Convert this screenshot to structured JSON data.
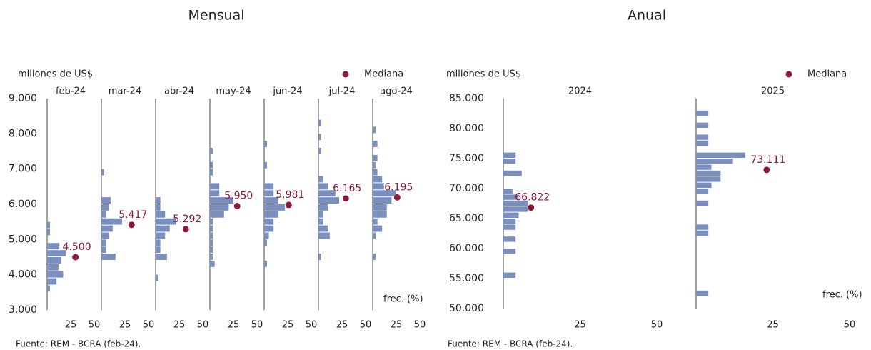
{
  "chart_data": [
    {
      "type": "hbar-histogram",
      "title": "Mensual",
      "y_label": "millones de US$",
      "x_label": "frec. (%)",
      "source": "Fuente: REM - BCRA (feb-24).",
      "median_name": "Mediana",
      "median_color": "#8b1a3a",
      "color": "#7b8fbf",
      "ylim": [
        3000,
        9000
      ],
      "yticks": [
        {
          "value": 3000,
          "label": "3.000"
        },
        {
          "value": 4000,
          "label": "4.000"
        },
        {
          "value": 5000,
          "label": "5.000"
        },
        {
          "value": 6000,
          "label": "6.000"
        },
        {
          "value": 7000,
          "label": "7.000"
        },
        {
          "value": 8000,
          "label": "8.000"
        },
        {
          "value": 9000,
          "label": "9.000"
        }
      ],
      "xlim": [
        0,
        50
      ],
      "xticks": [
        25,
        50
      ],
      "panels": [
        {
          "name": "feb-24",
          "bins": [
            3500,
            3700,
            3900,
            4100,
            4300,
            4500,
            4700,
            4900,
            5100,
            5300,
            5500
          ],
          "counts": [
            3,
            10,
            17,
            12,
            15,
            20,
            13,
            0,
            3,
            3
          ],
          "median_x": 30,
          "median": 4500,
          "median_label": "4.500"
        },
        {
          "name": "mar-24",
          "bins": [
            4400,
            4600,
            4800,
            5000,
            5200,
            5400,
            5600,
            5800,
            6000,
            6200,
            6400,
            6600,
            6800,
            7000
          ],
          "counts": [
            15,
            5,
            5,
            8,
            12,
            22,
            5,
            8,
            10,
            0,
            0,
            0,
            3
          ],
          "median_x": 32,
          "median": 5417,
          "median_label": "5.417"
        },
        {
          "name": "abr-24",
          "bins": [
            3800,
            4000,
            4200,
            4400,
            4600,
            4800,
            5000,
            5200,
            5400,
            5600,
            5800,
            6000,
            6200
          ],
          "counts": [
            3,
            0,
            0,
            12,
            5,
            5,
            10,
            15,
            22,
            10,
            5,
            5
          ],
          "median_x": 32,
          "median": 5292,
          "median_label": "5.292"
        },
        {
          "name": "may-24",
          "bins": [
            4200,
            4400,
            4600,
            4800,
            5000,
            5200,
            5400,
            5600,
            5800,
            6000,
            6200,
            6400,
            6600,
            6800,
            7000,
            7200,
            7400,
            7600
          ],
          "counts": [
            5,
            3,
            3,
            3,
            3,
            3,
            3,
            15,
            20,
            25,
            10,
            10,
            0,
            3,
            3,
            0,
            3
          ],
          "median_x": 29,
          "median": 5950,
          "median_label": "5.950"
        },
        {
          "name": "jun-24",
          "bins": [
            4200,
            4400,
            4600,
            4800,
            5000,
            5200,
            5400,
            5600,
            5800,
            6000,
            6200,
            6400,
            6600,
            6800,
            7000,
            7200,
            7400,
            7600,
            7800
          ],
          "counts": [
            3,
            0,
            0,
            3,
            5,
            10,
            10,
            15,
            22,
            15,
            10,
            10,
            0,
            0,
            3,
            0,
            0,
            3
          ],
          "median_x": 26,
          "median": 5981,
          "median_label": "5.981"
        },
        {
          "name": "jul-24",
          "bins": [
            4400,
            4600,
            4800,
            5000,
            5200,
            5400,
            5600,
            5800,
            6000,
            6200,
            6400,
            6600,
            6800,
            7000,
            7200,
            7400,
            7600,
            7800,
            8000,
            8200,
            8400
          ],
          "counts": [
            3,
            0,
            0,
            12,
            10,
            5,
            5,
            10,
            22,
            18,
            10,
            5,
            0,
            0,
            0,
            3,
            0,
            3,
            0,
            3
          ],
          "median_x": 29,
          "median": 6165,
          "median_label": "6.165"
        },
        {
          "name": "ago-24",
          "bins": [
            4400,
            4600,
            4800,
            5000,
            5200,
            5400,
            5600,
            5800,
            6000,
            6200,
            6400,
            6600,
            6800,
            7000,
            7200,
            7400,
            7600,
            7800,
            8000,
            8200
          ],
          "counts": [
            3,
            0,
            0,
            3,
            10,
            5,
            15,
            15,
            20,
            25,
            12,
            10,
            5,
            3,
            5,
            0,
            5,
            0,
            3
          ],
          "median_x": 26,
          "median": 6195,
          "median_label": "6.195"
        }
      ]
    },
    {
      "type": "hbar-histogram",
      "title": "Anual",
      "y_label": "millones de US$",
      "x_label": "frec. (%)",
      "source": "Fuente: REM - BCRA (feb-24).",
      "median_name": "Mediana",
      "median_color": "#8b1a3a",
      "color": "#7b8fbf",
      "ylim": [
        50000,
        85000
      ],
      "yticks": [
        {
          "value": 50000,
          "label": "50.000"
        },
        {
          "value": 55000,
          "label": "55.000"
        },
        {
          "value": 60000,
          "label": "60.000"
        },
        {
          "value": 65000,
          "label": "65.000"
        },
        {
          "value": 70000,
          "label": "70.000"
        },
        {
          "value": 75000,
          "label": "75.000"
        },
        {
          "value": 80000,
          "label": "80.000"
        },
        {
          "value": 85000,
          "label": "85.000"
        }
      ],
      "xlim": [
        0,
        50
      ],
      "xticks": [
        25,
        50
      ],
      "panels": [
        {
          "name": "2024",
          "bins": [
            55000,
            56000,
            57000,
            58000,
            59000,
            60000,
            61000,
            62000,
            63000,
            64000,
            65000,
            66000,
            67000,
            68000,
            69000,
            70000,
            71000,
            72000,
            73000,
            74000,
            75000,
            76000
          ],
          "counts": [
            4,
            0,
            0,
            0,
            4,
            0,
            4,
            0,
            4,
            4,
            5,
            8,
            8,
            5,
            3,
            0,
            0,
            6,
            0,
            4,
            4
          ],
          "median_x": 9,
          "median": 66822,
          "median_label": "66.822"
        },
        {
          "name": "2025",
          "bins": [
            52000,
            53000,
            54000,
            55000,
            56000,
            57000,
            58000,
            59000,
            60000,
            61000,
            62000,
            63000,
            64000,
            65000,
            66000,
            67000,
            68000,
            69000,
            70000,
            71000,
            72000,
            73000,
            74000,
            75000,
            76000,
            77000,
            78000,
            79000,
            80000,
            81000,
            82000,
            83000
          ],
          "counts": [
            4,
            0,
            0,
            0,
            0,
            0,
            0,
            0,
            0,
            0,
            4,
            4,
            0,
            0,
            0,
            4,
            0,
            4,
            5,
            8,
            8,
            5,
            12,
            16,
            0,
            4,
            4,
            0,
            4,
            0,
            4
          ],
          "median_x": 23,
          "median": 73111,
          "median_label": "73.111"
        }
      ]
    }
  ]
}
